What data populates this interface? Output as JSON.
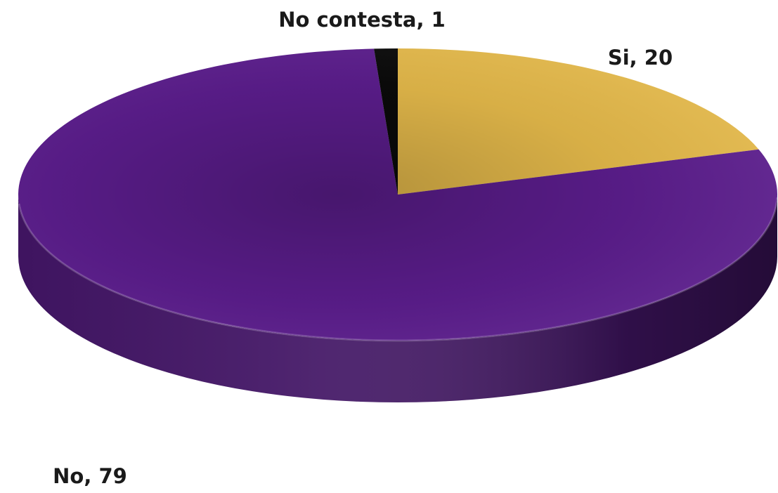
{
  "chart_data": {
    "type": "pie",
    "style": "3d",
    "categories": [
      "Si",
      "No",
      "No contesta"
    ],
    "values": [
      20,
      79,
      1
    ],
    "colors": [
      "#E3B84A",
      "#5B1D8C",
      "#0A0A0A"
    ],
    "labels": [
      "Si, 20",
      "No, 79",
      "No contesta, 1"
    ],
    "legend": "none"
  }
}
